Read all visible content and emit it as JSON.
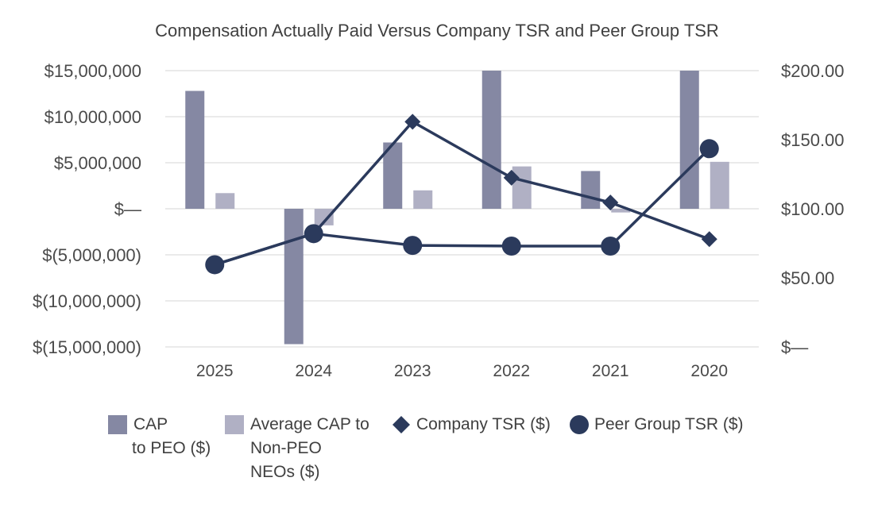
{
  "chart_data": {
    "type": "bar",
    "title": "Compensation Actually Paid Versus Company TSR and Peer Group TSR",
    "categories": [
      "2025",
      "2024",
      "2023",
      "2022",
      "2021",
      "2020"
    ],
    "y_left": {
      "range": [
        -15000000,
        15000000
      ],
      "ticks": [
        15000000,
        10000000,
        5000000,
        0,
        -5000000,
        -10000000,
        -15000000
      ],
      "tick_labels": [
        "$15,000,000",
        "$10,000,000",
        "$5,000,000",
        "$—",
        "$(5,000,000)",
        "$(10,000,000)",
        "$(15,000,000)"
      ]
    },
    "y_right": {
      "range": [
        0,
        200
      ],
      "ticks": [
        200,
        150,
        100,
        50,
        0
      ],
      "tick_labels": [
        "$200.00",
        "$150.00",
        "$100.00",
        "$50.00",
        "$—"
      ]
    },
    "grid": true,
    "legend_position": "bottom",
    "series": [
      {
        "name": "CAP\nto PEO ($)",
        "type": "bar",
        "axis": "left",
        "color": "#8588a3",
        "values": [
          12800000,
          -14700000,
          7200000,
          15000000,
          4100000,
          15000000
        ]
      },
      {
        "name": "Average CAP to\nNon-PEO\nNEOs ($)",
        "type": "bar",
        "axis": "left",
        "color": "#b0b0c4",
        "values": [
          1700000,
          -1800000,
          2000000,
          4600000,
          -400000,
          5100000
        ]
      },
      {
        "name": "Company TSR ($)",
        "type": "line",
        "marker": "diamond",
        "axis": "right",
        "color": "#2b3a5c",
        "values": [
          59.5,
          82,
          163,
          122.5,
          104.5,
          78
        ]
      },
      {
        "name": "Peer Group TSR ($)",
        "type": "line",
        "marker": "circle",
        "axis": "right",
        "color": "#2b3a5c",
        "values": [
          59.5,
          82,
          73.5,
          73,
          73,
          143.5
        ]
      }
    ]
  }
}
